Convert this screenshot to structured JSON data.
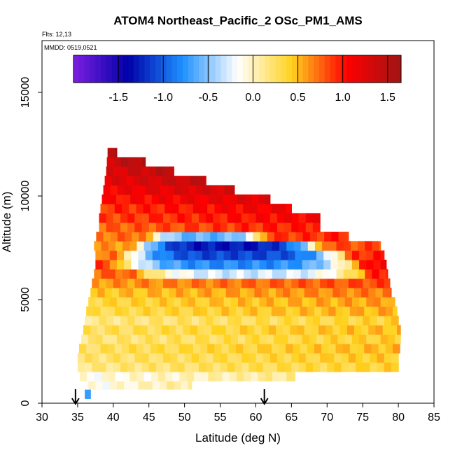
{
  "chart_data": {
    "type": "heatmap",
    "title": "ATOM4 Northeast_Pacific_2 OSc_PM1_AMS",
    "flights_text": "Flts: 12,13",
    "dates_text": "MMDD: 0519,0521",
    "xlabel": "Latitude (deg N)",
    "ylabel": "Altitude (m)",
    "xlim": [
      30,
      85
    ],
    "ylim": [
      0,
      17500
    ],
    "x_ticks": [
      30,
      35,
      40,
      45,
      50,
      55,
      60,
      65,
      70,
      75,
      80,
      85
    ],
    "y_ticks": [
      0,
      5000,
      10000,
      15000
    ],
    "colorbar": {
      "range": [
        -2.0,
        1.65
      ],
      "ticks": [
        -1.5,
        -1.0,
        -0.5,
        0.0,
        0.5,
        1.0,
        1.5
      ],
      "tick_labels": [
        "-1.5",
        "-1.0",
        "-0.5",
        "0.0",
        "0.5",
        "1.0",
        "1.5"
      ],
      "colors": [
        "#7b1fe0",
        "#0000a8",
        "#1e90ff",
        "#ffffff",
        "#ffd21e",
        "#ff0000",
        "#a01414"
      ]
    },
    "arrows_at_latitude": [
      34.7,
      61.2
    ],
    "rows": [
      {
        "alt": 450,
        "x0": 36.0,
        "x1": 36.8,
        "v": -0.6
      },
      {
        "alt": 900,
        "x0": 35.5,
        "x1": 51.0,
        "v": -0.15
      },
      {
        "alt": 1300,
        "x0": 35.3,
        "x1": 65.5,
        "v": -0.12
      },
      {
        "alt": 1750,
        "x0": 35.0,
        "x1": 80.0,
        "v": 0.15
      },
      {
        "alt": 2200,
        "x0": 35.0,
        "x1": 80.0,
        "v": 0.2
      },
      {
        "alt": 2650,
        "x0": 35.2,
        "x1": 80.2,
        "v": 0.25
      },
      {
        "alt": 3100,
        "x0": 35.5,
        "x1": 80.3,
        "v": 0.18
      },
      {
        "alt": 3550,
        "x0": 35.8,
        "x1": 80.3,
        "v": 0.25
      },
      {
        "alt": 4000,
        "x0": 36.0,
        "x1": 80.0,
        "v": 0.15
      },
      {
        "alt": 4450,
        "x0": 36.2,
        "x1": 79.8,
        "v": 0.3
      },
      {
        "alt": 4900,
        "x0": 36.5,
        "x1": 79.5,
        "v": 0.35
      },
      {
        "alt": 5350,
        "x0": 36.8,
        "x1": 79.0,
        "v": 0.45
      },
      {
        "alt": 5800,
        "x0": 37.0,
        "x1": 78.8,
        "v": 0.6
      },
      {
        "alt": 6250,
        "x0": 37.3,
        "x1": 78.5,
        "v": 0.75,
        "dip": {
          "x0": 45,
          "x1": 73,
          "v": -0.3
        }
      },
      {
        "alt": 6700,
        "x0": 37.5,
        "x1": 78.3,
        "v": 0.85,
        "dip": {
          "x0": 42,
          "x1": 72,
          "v": -0.8
        }
      },
      {
        "alt": 7150,
        "x0": 37.5,
        "x1": 78.0,
        "v": 0.7,
        "dip": {
          "x0": 43,
          "x1": 70,
          "v": -1.1
        }
      },
      {
        "alt": 7600,
        "x0": 37.3,
        "x1": 77.5,
        "v": 0.6,
        "dip": {
          "x0": 45,
          "x1": 66,
          "v": -1.3
        }
      },
      {
        "alt": 8050,
        "x0": 37.6,
        "x1": 73.0,
        "v": 0.7,
        "dip": {
          "x0": 47,
          "x1": 58,
          "v": -0.6
        }
      },
      {
        "alt": 8500,
        "x0": 38.0,
        "x1": 69.0,
        "v": 0.75
      },
      {
        "alt": 8950,
        "x0": 38.0,
        "x1": 69.0,
        "v": 0.85
      },
      {
        "alt": 9400,
        "x0": 38.2,
        "x1": 65.0,
        "v": 0.9
      },
      {
        "alt": 9850,
        "x0": 38.4,
        "x1": 62.0,
        "v": 1.0
      },
      {
        "alt": 10300,
        "x0": 38.6,
        "x1": 57.0,
        "v": 1.1
      },
      {
        "alt": 10750,
        "x0": 38.8,
        "x1": 53.0,
        "v": 1.2
      },
      {
        "alt": 11200,
        "x0": 39.0,
        "x1": 48.5,
        "v": 1.25
      },
      {
        "alt": 11650,
        "x0": 39.1,
        "x1": 44.5,
        "v": 1.35
      },
      {
        "alt": 12100,
        "x0": 39.2,
        "x1": 40.5,
        "v": 1.4
      }
    ]
  }
}
